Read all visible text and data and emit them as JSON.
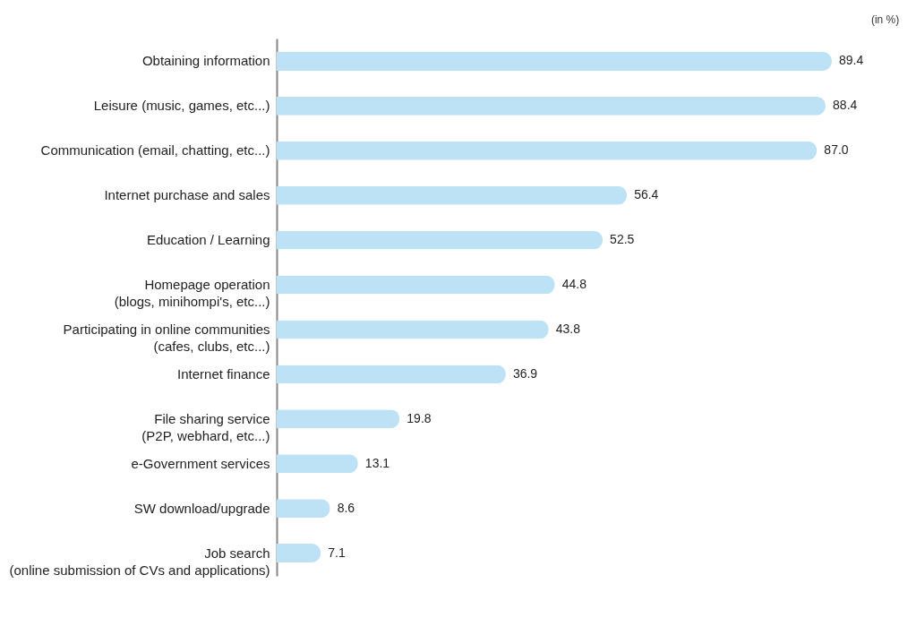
{
  "chart_data": {
    "type": "bar",
    "orientation": "horizontal",
    "categories": [
      "Obtaining information",
      "Leisure (music, games, etc...)",
      "Communication (email, chatting, etc...)",
      "Internet purchase and sales",
      "Education / Learning",
      "Homepage operation\n(blogs, minihompi's, etc...)",
      "Participating in online communities\n(cafes, clubs, etc...)",
      "Internet finance",
      "File sharing service\n(P2P, webhard, etc...)",
      "e-Government services",
      "SW download/upgrade",
      "Job search\n(online submission of CVs and applications)"
    ],
    "values": [
      89.4,
      88.4,
      87.0,
      56.4,
      52.5,
      44.8,
      43.8,
      36.9,
      19.8,
      13.1,
      8.6,
      7.1
    ],
    "color": "#bde2f6",
    "value_labels": [
      "89.4",
      "88.4",
      "87.0",
      "56.4",
      "52.5",
      "44.8",
      "43.8",
      "36.9",
      "19.8",
      "13.1",
      "8.6",
      "7.1"
    ],
    "annotations": [
      "(in %)"
    ]
  }
}
